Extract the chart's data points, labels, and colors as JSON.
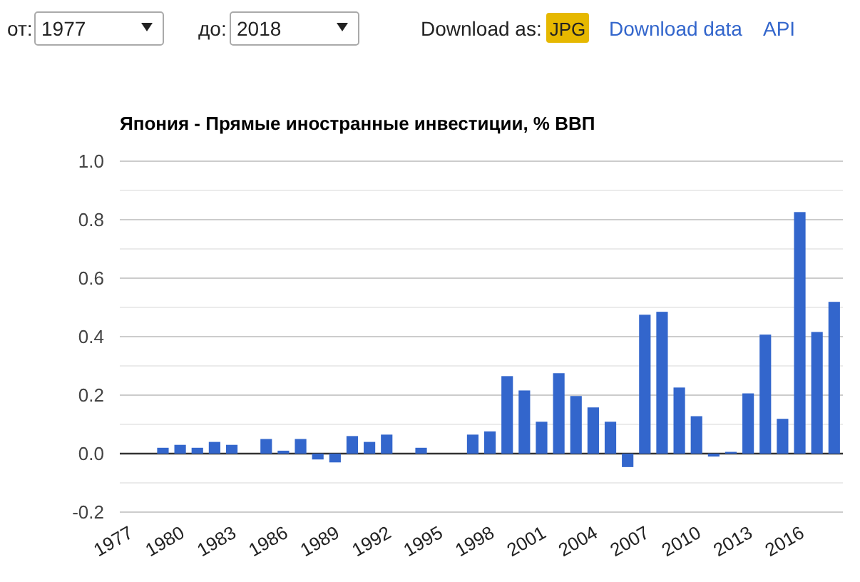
{
  "chart_data": {
    "type": "bar",
    "title": "Япония - Прямые иностранные инвестиции, % ВВП",
    "categories": [
      "1977",
      null,
      null,
      "1980",
      null,
      null,
      "1983",
      null,
      null,
      "1986",
      null,
      null,
      "1989",
      null,
      null,
      "1992",
      null,
      null,
      "1995",
      null,
      null,
      "1998",
      null,
      null,
      "2001",
      null,
      null,
      "2004",
      null,
      null,
      "2007",
      null,
      null,
      "2010",
      null,
      null,
      "2013",
      null,
      null,
      "2016",
      null,
      null
    ],
    "values": [
      0,
      0,
      0.02,
      0.03,
      0.02,
      0.04,
      0.03,
      0,
      0.05,
      0.01,
      0.05,
      -0.02,
      -0.03,
      0.06,
      0.04,
      0.065,
      0,
      0.02,
      0,
      0,
      0.065,
      0.076,
      0.265,
      0.216,
      0.109,
      0.275,
      0.197,
      0.158,
      0.109,
      -0.046,
      0.475,
      0.485,
      0.226,
      0.128,
      -0.01,
      0.006,
      0.206,
      0.407,
      0.119,
      0.826,
      0.416,
      0.519
    ],
    "color": "#3366cc",
    "ylim": [
      -0.2,
      1.0
    ],
    "yticks": [
      {
        "value": -0.2,
        "label": "-0.2"
      },
      {
        "value": -0.1,
        "label": null
      },
      {
        "value": 0,
        "label": "0.0"
      },
      {
        "value": 0.1,
        "label": null
      },
      {
        "value": 0.2,
        "label": "0.2"
      },
      {
        "value": 0.3,
        "label": null
      },
      {
        "value": 0.4,
        "label": "0.4"
      },
      {
        "value": 0.5,
        "label": null
      },
      {
        "value": 0.6,
        "label": "0.6"
      },
      {
        "value": 0.7,
        "label": null
      },
      {
        "value": 0.8,
        "label": "0.8"
      },
      {
        "value": 0.9,
        "label": null
      },
      {
        "value": 1.0,
        "label": "1.0"
      }
    ],
    "grid": "y",
    "annotations": [
      "от:",
      "1977",
      "до:",
      "2018",
      "Download as:",
      "JPG",
      "Download data",
      "API"
    ]
  }
}
